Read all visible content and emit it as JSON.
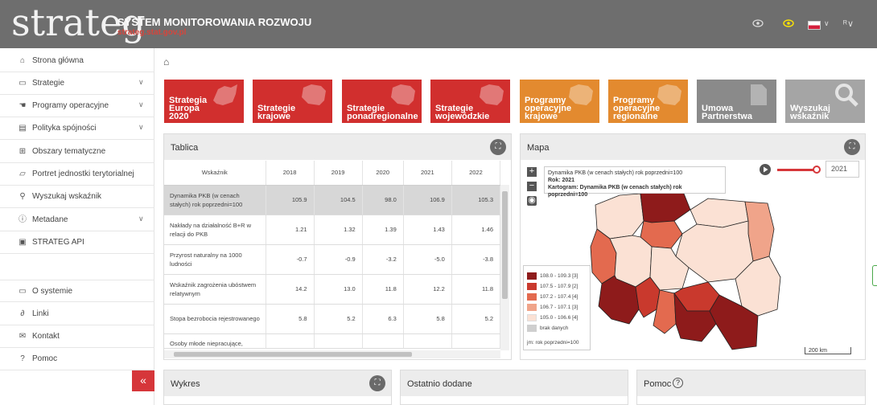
{
  "header": {
    "logo": "strateg",
    "title": "SYSTEM MONITOROWANIA ROZWOJU",
    "subtitle": "strateg.stat.gov.pl"
  },
  "sidebar": {
    "items": [
      {
        "label": "Strona główna",
        "icon": "home-icon"
      },
      {
        "label": "Strategie",
        "icon": "folder-icon"
      },
      {
        "label": "Programy operacyjne",
        "icon": "hand-icon"
      },
      {
        "label": "Polityka spójności",
        "icon": "book-icon"
      },
      {
        "label": "Obszary tematyczne",
        "icon": "grid-icon"
      },
      {
        "label": "Portret jednostki terytorialnej",
        "icon": "map-icon"
      },
      {
        "label": "Wyszukaj wskaźnik",
        "icon": "search-icon"
      },
      {
        "label": "Metadane",
        "icon": "info-icon"
      },
      {
        "label": "STRATEG API",
        "icon": "api-icon"
      },
      {
        "label": "O systemie",
        "icon": "monitor-icon"
      },
      {
        "label": "Linki",
        "icon": "link-icon"
      },
      {
        "label": "Kontakt",
        "icon": "mail-icon"
      },
      {
        "label": "Pomoc",
        "icon": "help-icon"
      }
    ],
    "collapse_label": "«"
  },
  "tiles": [
    {
      "label": "Strategia\nEuropa\n2020",
      "color": "#d12f2e"
    },
    {
      "label": "Strategie\nkrajowe",
      "color": "#d12f2e"
    },
    {
      "label": "Strategie\nponadregionalne",
      "color": "#d12f2e"
    },
    {
      "label": "Strategie\nwojewódzkie",
      "color": "#d12f2e"
    },
    {
      "label": "Programy\noperacyjne\nkrajowe",
      "color": "#e38a2f"
    },
    {
      "label": "Programy\noperacyjne\nregionalne",
      "color": "#e38a2f"
    },
    {
      "label": "Umowa\nPartnerstwa",
      "color": "#8a8a8a"
    },
    {
      "label": "Wyszukaj\nwskaźnik",
      "color": "#a5a5a5"
    }
  ],
  "tablica": {
    "title": "Tablica",
    "header": [
      "Wskaźnik",
      "2018",
      "2019",
      "2020",
      "2021",
      "2022"
    ],
    "rows": [
      {
        "name": "Dynamika PKB (w cenach stałych) rok poprzedni=100",
        "values": [
          "105.9",
          "104.5",
          "98.0",
          "106.9",
          "105.3"
        ]
      },
      {
        "name": "Nakłady na działalność B+R w relacji do PKB",
        "values": [
          "1.21",
          "1.32",
          "1.39",
          "1.43",
          "1.46"
        ]
      },
      {
        "name": "Przyrost naturalny na 1000 ludności",
        "values": [
          "-0.7",
          "-0.9",
          "-3.2",
          "-5.0",
          "-3.8"
        ]
      },
      {
        "name": "Wskaźnik zagrożenia ubóstwem relatywnym",
        "values": [
          "14.2",
          "13.0",
          "11.8",
          "12.2",
          "11.8"
        ]
      },
      {
        "name": "Stopa bezrobocia rejestrowanego",
        "values": [
          "5.8",
          "5.2",
          "6.3",
          "5.8",
          "5.2"
        ]
      },
      {
        "name": "Osoby młode niepracujące,",
        "values": [
          "",
          "",
          "",
          "",
          ""
        ]
      }
    ]
  },
  "mapa": {
    "title": "Mapa",
    "tooltip": {
      "line1": "Dynamika PKB (w cenach stałych) rok poprzedni=100",
      "line2": "Rok: 2021",
      "line3": "Kartogram: Dynamika PKB (w cenach stałych) rok poprzedni=100"
    },
    "year": "2021",
    "legend": [
      {
        "label": "108.0 - 109.3 [3]",
        "color": "#8e1b1b"
      },
      {
        "label": "107.5 - 107.9 [2]",
        "color": "#c9392d"
      },
      {
        "label": "107.2 - 107.4 [4]",
        "color": "#e36a4f"
      },
      {
        "label": "106.7 - 107.1 [3]",
        "color": "#f0a48a"
      },
      {
        "label": "105.0 - 106.6 [4]",
        "color": "#fbe1d4"
      },
      {
        "label": "brak danych",
        "color": "#cfcfcf"
      }
    ],
    "legend_unit": "jm: rok poprzedni=100",
    "scale": "200 km",
    "zoom_in": "+",
    "zoom_out": "−"
  },
  "bottom_panels": {
    "wykres": "Wykres",
    "ostatnio": "Ostatnio dodane",
    "pomoc": "Pomoc"
  }
}
